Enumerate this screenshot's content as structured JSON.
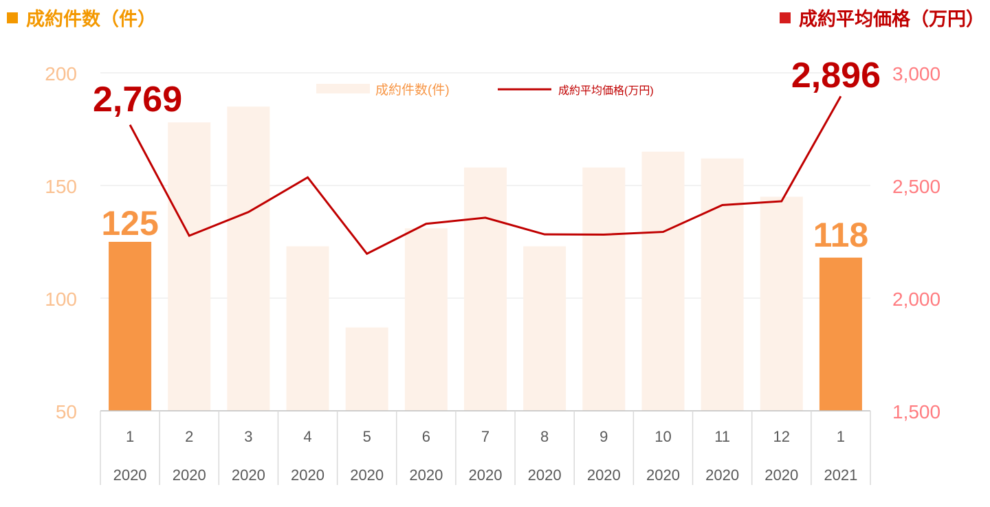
{
  "header": {
    "left_title": "成約件数（件）",
    "right_title": "成約平均価格（万円）"
  },
  "colors": {
    "bar_highlight": "#f79646",
    "bar_faded": "#fdf1e8",
    "line": "#c00000",
    "left_axis_text": "#fac090",
    "right_axis_text": "#ff7c80",
    "header_left": "#f39800",
    "header_right": "#c00000"
  },
  "chart_data": {
    "type": "bar+line",
    "categories": [
      "1",
      "2",
      "3",
      "4",
      "5",
      "6",
      "7",
      "8",
      "9",
      "10",
      "11",
      "12",
      "1"
    ],
    "years": [
      "2020",
      "2020",
      "2020",
      "2020",
      "2020",
      "2020",
      "2020",
      "2020",
      "2020",
      "2020",
      "2020",
      "2020",
      "2021"
    ],
    "series": [
      {
        "name": "成約件数(件)",
        "kind": "bar",
        "axis": "left",
        "values": [
          125,
          178,
          185,
          123,
          87,
          131,
          158,
          123,
          158,
          165,
          162,
          145,
          118
        ],
        "highlighted": [
          true,
          false,
          false,
          false,
          false,
          false,
          false,
          false,
          false,
          false,
          false,
          false,
          true
        ]
      },
      {
        "name": "成約平均価格(万円)",
        "kind": "line",
        "axis": "right",
        "values": [
          2769,
          2277,
          2382,
          2536,
          2197,
          2330,
          2357,
          2283,
          2282,
          2294,
          2413,
          2430,
          2896
        ]
      }
    ],
    "left_axis": {
      "ylim": [
        50,
        200
      ],
      "ticks": [
        "50",
        "100",
        "150",
        "200"
      ],
      "tick_values": [
        50,
        100,
        150,
        200
      ]
    },
    "right_axis": {
      "ylim": [
        1500,
        3000
      ],
      "ticks": [
        "1,500",
        "2,000",
        "2,500",
        "3,000"
      ],
      "tick_values": [
        1500,
        2000,
        2500,
        3000
      ]
    },
    "annotations": {
      "bar_first": "125",
      "bar_last": "118",
      "line_first": "2,769",
      "line_last": "2,896"
    },
    "legend": {
      "placement": "top-center",
      "bar_label": "成約件数(件)",
      "line_label": "成約平均価格(万円)"
    },
    "grid": true
  }
}
